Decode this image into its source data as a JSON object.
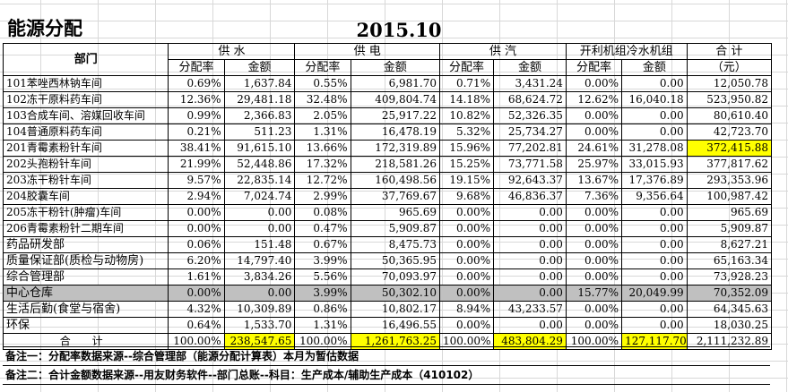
{
  "title": "能源分配",
  "period": "2015.10",
  "headers": {
    "dept": "部门",
    "groups": [
      "供  水",
      "供  电",
      "供  汽",
      "开利机组冷水机组",
      "合  计"
    ],
    "sub": [
      "分配率",
      "金额",
      "分配率",
      "金额",
      "分配率",
      "金额",
      "分配率",
      "金额"
    ],
    "total_unit": "（元）"
  },
  "rows": [
    {
      "dept": "101苯唑西林钠车间",
      "water_rate": "0.69%",
      "water_amt": "1,637.84",
      "power_rate": "0.55%",
      "power_amt": "6,981.70",
      "steam_rate": "0.71%",
      "steam_amt": "3,431.24",
      "chiller_rate": "0.00%",
      "chiller_amt": "0.00",
      "total": "12,050.78"
    },
    {
      "dept": "102冻干原料药车间",
      "water_rate": "12.36%",
      "water_amt": "29,481.18",
      "power_rate": "32.48%",
      "power_amt": "409,804.74",
      "steam_rate": "14.18%",
      "steam_amt": "68,624.72",
      "chiller_rate": "12.62%",
      "chiller_amt": "16,040.18",
      "total": "523,950.82"
    },
    {
      "dept": "103合成车间、溶媒回收车间",
      "water_rate": "0.99%",
      "water_amt": "2,366.83",
      "power_rate": "2.05%",
      "power_amt": "25,917.22",
      "steam_rate": "10.82%",
      "steam_amt": "52,326.35",
      "chiller_rate": "0.00%",
      "chiller_amt": "0.00",
      "total": "80,610.40"
    },
    {
      "dept": "104普通原料药车间",
      "water_rate": "0.21%",
      "water_amt": "511.23",
      "power_rate": "1.31%",
      "power_amt": "16,478.19",
      "steam_rate": "5.32%",
      "steam_amt": "25,734.27",
      "chiller_rate": "0.00%",
      "chiller_amt": "0.00",
      "total": "42,723.70"
    },
    {
      "dept": "201青霉素粉针车间",
      "water_rate": "38.41%",
      "water_amt": "91,615.10",
      "power_rate": "13.66%",
      "power_amt": "172,319.89",
      "steam_rate": "15.96%",
      "steam_amt": "77,202.81",
      "chiller_rate": "24.61%",
      "chiller_amt": "31,278.08",
      "total": "372,415.88"
    },
    {
      "dept": "202头孢粉针车间",
      "water_rate": "21.99%",
      "water_amt": "52,448.86",
      "power_rate": "17.32%",
      "power_amt": "218,581.26",
      "steam_rate": "15.25%",
      "steam_amt": "73,771.58",
      "chiller_rate": "25.97%",
      "chiller_amt": "33,015.93",
      "total": "377,817.62"
    },
    {
      "dept": "203冻干粉针车间",
      "water_rate": "9.57%",
      "water_amt": "22,835.14",
      "power_rate": "12.72%",
      "power_amt": "160,498.56",
      "steam_rate": "19.15%",
      "steam_amt": "92,643.37",
      "chiller_rate": "13.67%",
      "chiller_amt": "17,376.89",
      "total": "293,353.96"
    },
    {
      "dept": "204胶囊车间",
      "water_rate": "2.94%",
      "water_amt": "7,024.74",
      "power_rate": "2.99%",
      "power_amt": "37,769.67",
      "steam_rate": "9.68%",
      "steam_amt": "46,836.37",
      "chiller_rate": "7.36%",
      "chiller_amt": "9,356.64",
      "total": "100,987.42"
    },
    {
      "dept": "205冻干粉针(肿瘤)车间",
      "water_rate": "0.00%",
      "water_amt": "0.00",
      "power_rate": "0.08%",
      "power_amt": "965.69",
      "steam_rate": "0.00%",
      "steam_amt": "0.00",
      "chiller_rate": "0.00%",
      "chiller_amt": "0.00",
      "total": "965.69"
    },
    {
      "dept": "206青霉素粉针二期车间",
      "water_rate": "0.00%",
      "water_amt": "0.00",
      "power_rate": "0.47%",
      "power_amt": "5,909.87",
      "steam_rate": "0.00%",
      "steam_amt": "0.00",
      "chiller_rate": "0.00%",
      "chiller_amt": "0.00",
      "total": "5,909.87"
    },
    {
      "dept": "药品研发部",
      "water_rate": "0.06%",
      "water_amt": "151.48",
      "power_rate": "0.67%",
      "power_amt": "8,475.73",
      "steam_rate": "0.00%",
      "steam_amt": "0.00",
      "chiller_rate": "0.00%",
      "chiller_amt": "0.00",
      "total": "8,627.21"
    },
    {
      "dept": "质量保证部(质检与动物房)",
      "water_rate": "6.20%",
      "water_amt": "14,797.40",
      "power_rate": "3.99%",
      "power_amt": "50,365.95",
      "steam_rate": "0.00%",
      "steam_amt": "0.00",
      "chiller_rate": "0.00%",
      "chiller_amt": "0.00",
      "total": "65,163.34"
    },
    {
      "dept": "综合管理部",
      "water_rate": "1.61%",
      "water_amt": "3,834.26",
      "power_rate": "5.56%",
      "power_amt": "70,093.97",
      "steam_rate": "0.00%",
      "steam_amt": "0.00",
      "chiller_rate": "0.00%",
      "chiller_amt": "0.00",
      "total": "73,928.23"
    },
    {
      "dept": "中心仓库",
      "water_rate": "0.00%",
      "water_amt": "0.00",
      "power_rate": "3.99%",
      "power_amt": "50,302.10",
      "steam_rate": "0.00%",
      "steam_amt": "0.00",
      "chiller_rate": "15.77%",
      "chiller_amt": "20,049.99",
      "total": "70,352.09"
    },
    {
      "dept": "生活后勤(食堂与宿舍)",
      "water_rate": "4.32%",
      "water_amt": "10,309.89",
      "power_rate": "0.86%",
      "power_amt": "10,802.17",
      "steam_rate": "8.94%",
      "steam_amt": "43,233.57",
      "chiller_rate": "0.00%",
      "chiller_amt": "0.00",
      "total": "64,345.63"
    },
    {
      "dept": "环保",
      "water_rate": "0.64%",
      "water_amt": "1,533.70",
      "power_rate": "1.31%",
      "power_amt": "16,496.55",
      "steam_rate": "0.00%",
      "steam_amt": "0.00",
      "chiller_rate": "0.00%",
      "chiller_amt": "0.00",
      "total": "18,030.25"
    }
  ],
  "total_row": {
    "dept": "合 计",
    "water_rate": "100.00%",
    "water_amt": "238,547.65",
    "power_rate": "100.00%",
    "power_amt": "1,261,763.25",
    "steam_rate": "100.00%",
    "steam_amt": "483,804.29",
    "chiller_rate": "100.00%",
    "chiller_amt": "127,117.70",
    "total": "2,111,232.89"
  },
  "notes": [
    "备注一：分配率数据来源--综合管理部（能源分配计算表）本月为暂估数据",
    "备注二：合计金额数据来源--用友财务软件--部门总账--科目：生产成本/辅助生产成本（410102）"
  ],
  "colors": {
    "highlight": "#ffff00",
    "grey_row": "#c0c0c0",
    "gridline": "#d8d8d8"
  }
}
